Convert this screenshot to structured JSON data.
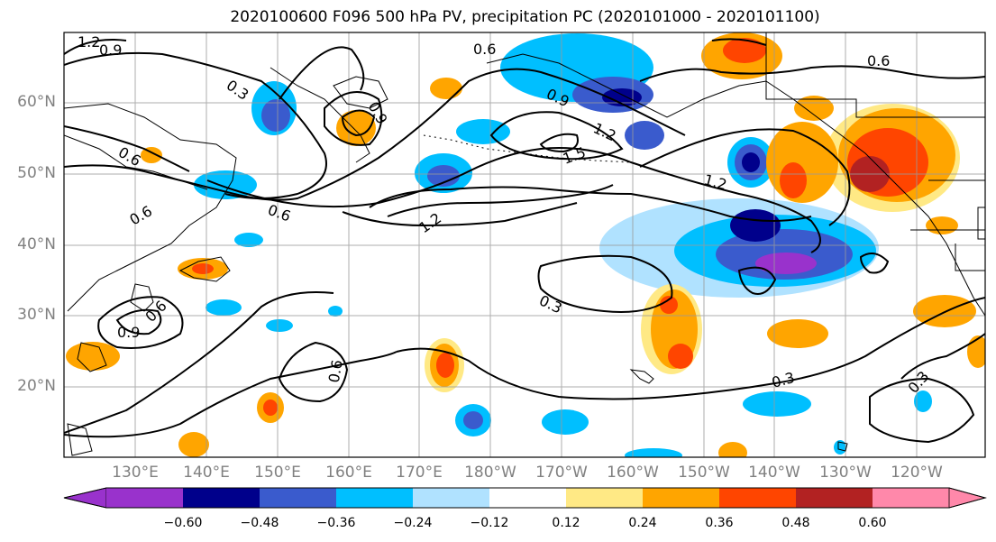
{
  "title": "2020100600 F096 500 hPa PV, precipitation PC (2020101000 - 2020101100)",
  "lat_labels": [
    "60°N",
    "50°N",
    "40°N",
    "30°N",
    "20°N"
  ],
  "lon_labels": [
    "130°E",
    "140°E",
    "150°E",
    "160°E",
    "170°E",
    "180°W",
    "170°W",
    "160°W",
    "150°W",
    "140°W",
    "130°W",
    "120°W"
  ],
  "contour_labels": [
    "1.2",
    "0.9",
    "0.3",
    "0.6",
    "0.9",
    "0.6",
    "0.9",
    "1.2",
    "1.5",
    "0.6",
    "0.6",
    "0.6",
    "1.2",
    "1.2",
    "0.9",
    "0.6",
    "0.3",
    "0.6",
    "0.3",
    "0.3"
  ],
  "colorbar": {
    "ticks": [
      "−0.60",
      "−0.48",
      "−0.36",
      "−0.24",
      "−0.12",
      "0.12",
      "0.24",
      "0.36",
      "0.48",
      "0.60"
    ],
    "colors": [
      "#9932cc",
      "#00008b",
      "#3a5bcd",
      "#00bfff",
      "#b0e2ff",
      "#ffffff",
      "#ffe985",
      "#ffa500",
      "#ff4500",
      "#b22222",
      "#ff88aa"
    ]
  },
  "palette": {
    "neg_strong": "#00008b",
    "neg_purple": "#9932cc",
    "neg_mid": "#3a5bcd",
    "neg_light": "#00bfff",
    "pos_light": "#ffe985",
    "pos_mid": "#ffa500",
    "pos_strong": "#ff4500",
    "pos_dark": "#b22222"
  }
}
